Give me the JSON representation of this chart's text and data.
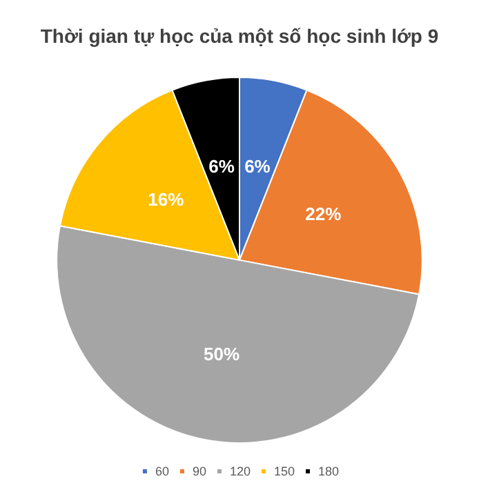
{
  "chart_data": {
    "type": "pie",
    "title": "Thời gian tự học của một số học sinh lớp 9",
    "categories": [
      "60",
      "90",
      "120",
      "150",
      "180"
    ],
    "values": [
      6,
      22,
      50,
      16,
      6
    ],
    "colors": [
      "#4472c4",
      "#ed7d31",
      "#a5a5a5",
      "#ffc000",
      "#000000"
    ],
    "value_labels": [
      "6%",
      "22%",
      "50%",
      "16%",
      "6%"
    ],
    "legend": "bottom"
  }
}
